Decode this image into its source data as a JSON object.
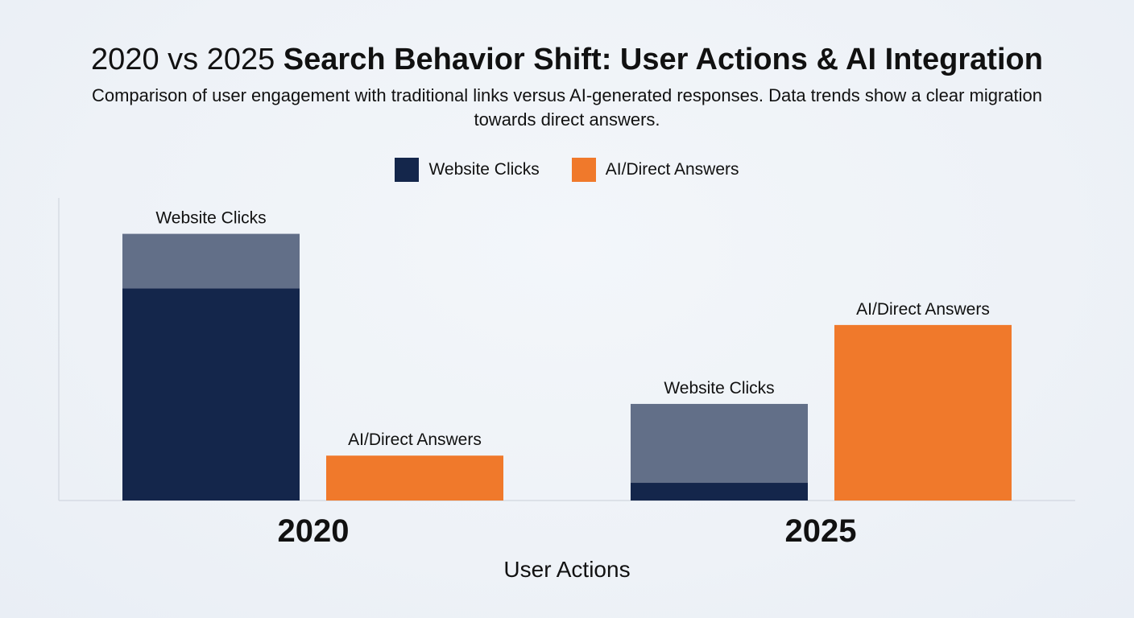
{
  "chart_data": {
    "type": "bar",
    "title_light": "2020 vs 2025",
    "title_bold": "Search Behavior Shift: User Actions & AI Integration",
    "subtitle": "Comparison of user engagement with traditional links versus AI-generated responses. Data trends show a clear migration towards direct answers.",
    "xlabel": "User Actions",
    "ylabel": "",
    "categories": [
      "2020",
      "2025"
    ],
    "series": [
      {
        "name": "Website Clicks",
        "color": "#14264b",
        "values": [
          78,
          6.5
        ],
        "extension_values": [
          20,
          29
        ],
        "extension_color": "#626f88",
        "bar_labels": [
          "Website Clicks",
          "Website Clicks"
        ]
      },
      {
        "name": "AI/Direct Answers",
        "color": "#f0792b",
        "values": [
          16.5,
          64.5
        ],
        "bar_labels": [
          "AI/Direct Answers",
          "AI/Direct Answers"
        ]
      }
    ],
    "ylim": [
      0,
      110
    ],
    "grid": false,
    "legend_position": "top-center"
  }
}
